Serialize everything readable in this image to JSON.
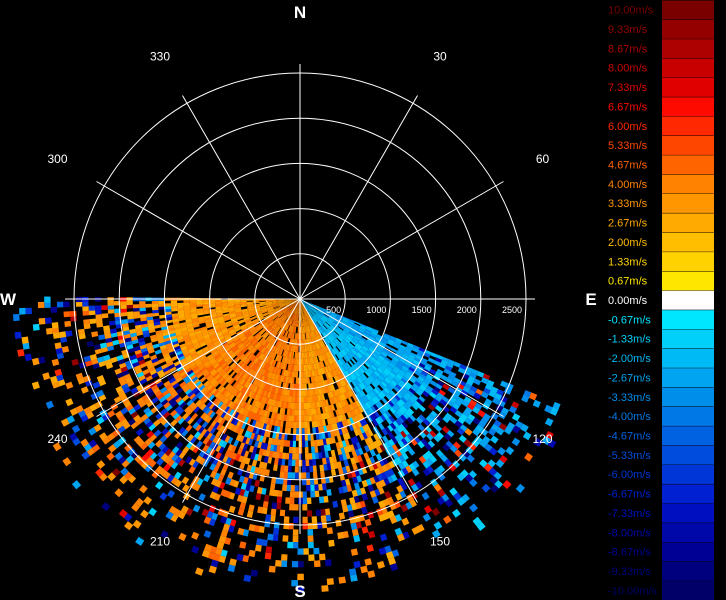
{
  "chart_data": {
    "type": "heatmap",
    "subtype": "polar-radial-velocity-ppi",
    "cardinals": {
      "N": "N",
      "E": "E",
      "S": "S",
      "W": "W"
    },
    "azimuth_labels": [
      {
        "az": 30,
        "text": "30"
      },
      {
        "az": 60,
        "text": "60"
      },
      {
        "az": 120,
        "text": "120"
      },
      {
        "az": 150,
        "text": "150"
      },
      {
        "az": 210,
        "text": "210"
      },
      {
        "az": 240,
        "text": "240"
      },
      {
        "az": 300,
        "text": "300"
      },
      {
        "az": 330,
        "text": "330"
      }
    ],
    "range_rings": [
      500,
      1000,
      1500,
      2000,
      2500
    ],
    "range_labels": [
      "500",
      "1000",
      "1500",
      "2000",
      "2500"
    ],
    "range_max": 2600,
    "spoke_azimuths": [
      0,
      30,
      60,
      90,
      120,
      150,
      180,
      210,
      240,
      270,
      300,
      330
    ],
    "data_sector": {
      "azimuth_start": 112,
      "azimuth_end": 270
    },
    "velocity_field": [
      {
        "az_from": 112,
        "az_to": 125,
        "velocity": -2.67
      },
      {
        "az_from": 125,
        "az_to": 150,
        "velocity": -2.0
      },
      {
        "az_from": 150,
        "az_to": 180,
        "velocity": 3.33
      },
      {
        "az_from": 180,
        "az_to": 240,
        "velocity": 4.0
      },
      {
        "az_from": 240,
        "az_to": 270,
        "velocity": 3.33
      }
    ],
    "legend": {
      "unit": "m/s",
      "entries": [
        {
          "label": "10.00m/s",
          "color": "#7a0000"
        },
        {
          "label": "9.33m/s",
          "color": "#940000"
        },
        {
          "label": "8.67m/s",
          "color": "#ad0000"
        },
        {
          "label": "8.00m/s",
          "color": "#c80000"
        },
        {
          "label": "7.33m/s",
          "color": "#e10000"
        },
        {
          "label": "6.67m/s",
          "color": "#ff0a00"
        },
        {
          "label": "6.00m/s",
          "color": "#ff2800"
        },
        {
          "label": "5.33m/s",
          "color": "#ff4600"
        },
        {
          "label": "4.67m/s",
          "color": "#ff6400"
        },
        {
          "label": "4.00m/s",
          "color": "#ff8200"
        },
        {
          "label": "3.33m/s",
          "color": "#ff9600"
        },
        {
          "label": "2.67m/s",
          "color": "#ffaa00"
        },
        {
          "label": "2.00m/s",
          "color": "#ffbe00"
        },
        {
          "label": "1.33m/s",
          "color": "#ffd200"
        },
        {
          "label": "0.67m/s",
          "color": "#ffe600"
        },
        {
          "label": "0.00m/s",
          "color": "#ffffff"
        },
        {
          "label": "-0.67m/s",
          "color": "#00e6ff"
        },
        {
          "label": "-1.33m/s",
          "color": "#00d0fa"
        },
        {
          "label": "-2.00m/s",
          "color": "#00baf5"
        },
        {
          "label": "-2.67m/s",
          "color": "#00a4f0"
        },
        {
          "label": "-3.33m/s",
          "color": "#008eeb"
        },
        {
          "label": "-4.00m/s",
          "color": "#0078e6"
        },
        {
          "label": "-4.67m/s",
          "color": "#0062e1"
        },
        {
          "label": "-5.33m/s",
          "color": "#004cdc"
        },
        {
          "label": "-6.00m/s",
          "color": "#0036d7"
        },
        {
          "label": "-6.67m/s",
          "color": "#0020d2"
        },
        {
          "label": "-7.33m/s",
          "color": "#0010c0"
        },
        {
          "label": "-8.00m/s",
          "color": "#0008aa"
        },
        {
          "label": "-8.67m/s",
          "color": "#000094"
        },
        {
          "label": "-9.33m/s",
          "color": "#00007e"
        },
        {
          "label": "-10.00m/s",
          "color": "#000068"
        }
      ]
    }
  }
}
